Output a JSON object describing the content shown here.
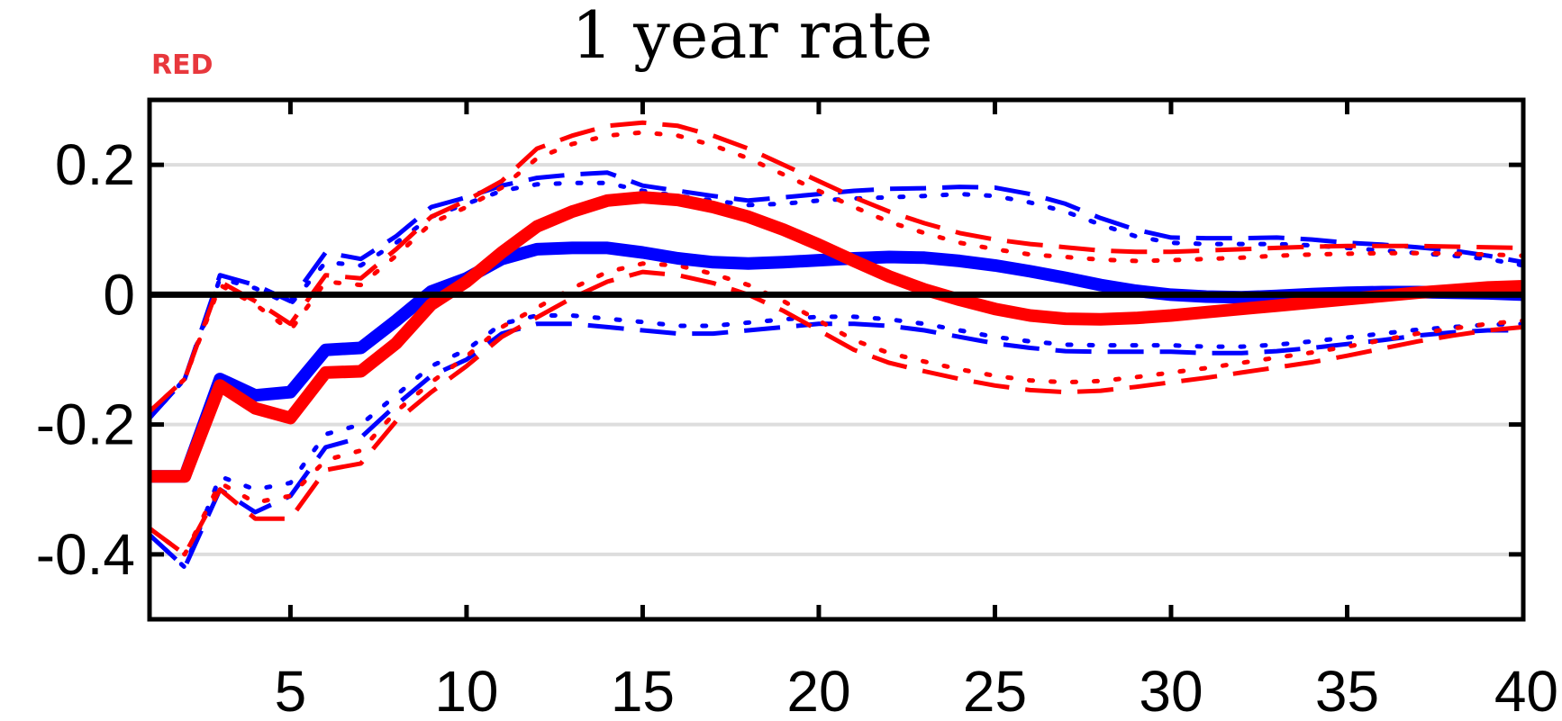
{
  "tag_label": "RED",
  "chart_data": {
    "type": "line",
    "title": "1 year rate",
    "xlabel": "",
    "ylabel": "",
    "xlim": [
      1,
      40
    ],
    "ylim": [
      -0.5,
      0.3
    ],
    "xticks": [
      5,
      10,
      15,
      20,
      25,
      30,
      35,
      40
    ],
    "xtick_labels": [
      "5",
      "10",
      "15",
      "20",
      "25",
      "30",
      "35",
      "40"
    ],
    "yticks": [
      0.2,
      0,
      -0.2,
      -0.4
    ],
    "ytick_labels": [
      "0.2",
      "0",
      "-0.2",
      "-0.4"
    ],
    "grid": "horizontal",
    "x": [
      1,
      2,
      3,
      4,
      5,
      6,
      7,
      8,
      9,
      10,
      11,
      12,
      13,
      14,
      15,
      16,
      17,
      18,
      19,
      20,
      21,
      22,
      23,
      24,
      25,
      26,
      27,
      28,
      29,
      30,
      31,
      32,
      33,
      34,
      35,
      36,
      37,
      38,
      39,
      40
    ],
    "series": [
      {
        "color": "#0000ff",
        "style": "solid",
        "width": 14,
        "values": [
          -0.28,
          -0.28,
          -0.13,
          -0.155,
          -0.15,
          -0.085,
          -0.082,
          -0.04,
          0.005,
          0.025,
          0.055,
          0.07,
          0.072,
          0.072,
          0.065,
          0.056,
          0.05,
          0.048,
          0.05,
          0.053,
          0.056,
          0.058,
          0.057,
          0.052,
          0.045,
          0.036,
          0.026,
          0.015,
          0.006,
          0.0,
          -0.003,
          -0.004,
          -0.002,
          0.001,
          0.003,
          0.004,
          0.004,
          0.003,
          0.002,
          0.0
        ]
      },
      {
        "color": "#ff0000",
        "style": "solid",
        "width": 14,
        "values": [
          -0.28,
          -0.28,
          -0.14,
          -0.175,
          -0.19,
          -0.12,
          -0.118,
          -0.075,
          -0.015,
          0.02,
          0.065,
          0.105,
          0.128,
          0.145,
          0.15,
          0.146,
          0.135,
          0.12,
          0.1,
          0.077,
          0.052,
          0.028,
          0.008,
          -0.008,
          -0.022,
          -0.032,
          -0.037,
          -0.038,
          -0.036,
          -0.032,
          -0.027,
          -0.022,
          -0.017,
          -0.012,
          -0.007,
          -0.002,
          0.003,
          0.007,
          0.011,
          0.013
        ]
      },
      {
        "color": "#0000ff",
        "style": "dash",
        "width": 5,
        "values": [
          -0.19,
          -0.13,
          0.03,
          0.015,
          -0.01,
          0.065,
          0.055,
          0.09,
          0.135,
          0.15,
          0.168,
          0.18,
          0.185,
          0.188,
          0.168,
          0.16,
          0.152,
          0.145,
          0.15,
          0.155,
          0.16,
          0.163,
          0.164,
          0.166,
          0.165,
          0.155,
          0.14,
          0.118,
          0.1,
          0.088,
          0.087,
          0.087,
          0.088,
          0.085,
          0.08,
          0.077,
          0.073,
          0.068,
          0.06,
          0.05
        ]
      },
      {
        "color": "#0000ff",
        "style": "dot",
        "width": 5,
        "values": [
          -0.19,
          -0.13,
          0.025,
          0.01,
          -0.015,
          0.05,
          0.045,
          0.08,
          0.12,
          0.14,
          0.16,
          0.17,
          0.172,
          0.172,
          0.16,
          0.152,
          0.145,
          0.138,
          0.14,
          0.145,
          0.148,
          0.15,
          0.152,
          0.155,
          0.152,
          0.142,
          0.128,
          0.108,
          0.09,
          0.08,
          0.078,
          0.078,
          0.078,
          0.076,
          0.072,
          0.068,
          0.064,
          0.06,
          0.055,
          0.045
        ]
      },
      {
        "color": "#0000ff",
        "style": "dash",
        "width": 5,
        "values": [
          -0.37,
          -0.42,
          -0.3,
          -0.335,
          -0.31,
          -0.235,
          -0.22,
          -0.17,
          -0.125,
          -0.1,
          -0.06,
          -0.045,
          -0.045,
          -0.05,
          -0.055,
          -0.06,
          -0.06,
          -0.055,
          -0.05,
          -0.045,
          -0.045,
          -0.048,
          -0.055,
          -0.065,
          -0.075,
          -0.082,
          -0.087,
          -0.088,
          -0.088,
          -0.088,
          -0.09,
          -0.09,
          -0.087,
          -0.082,
          -0.076,
          -0.07,
          -0.063,
          -0.058,
          -0.055,
          -0.055
        ]
      },
      {
        "color": "#0000ff",
        "style": "dot",
        "width": 5,
        "values": [
          -0.37,
          -0.42,
          -0.28,
          -0.3,
          -0.29,
          -0.215,
          -0.2,
          -0.155,
          -0.11,
          -0.085,
          -0.045,
          -0.032,
          -0.032,
          -0.037,
          -0.042,
          -0.048,
          -0.048,
          -0.043,
          -0.038,
          -0.034,
          -0.034,
          -0.038,
          -0.045,
          -0.055,
          -0.065,
          -0.072,
          -0.077,
          -0.078,
          -0.078,
          -0.078,
          -0.08,
          -0.08,
          -0.077,
          -0.072,
          -0.066,
          -0.06,
          -0.054,
          -0.05,
          -0.046,
          -0.045
        ]
      },
      {
        "color": "#ff0000",
        "style": "dash",
        "width": 5,
        "values": [
          -0.18,
          -0.13,
          0.02,
          -0.01,
          -0.045,
          0.03,
          0.025,
          0.07,
          0.12,
          0.145,
          0.175,
          0.225,
          0.245,
          0.26,
          0.265,
          0.26,
          0.245,
          0.225,
          0.2,
          0.175,
          0.15,
          0.128,
          0.11,
          0.095,
          0.085,
          0.078,
          0.073,
          0.068,
          0.066,
          0.066,
          0.068,
          0.07,
          0.072,
          0.074,
          0.075,
          0.075,
          0.075,
          0.074,
          0.073,
          0.072
        ]
      },
      {
        "color": "#ff0000",
        "style": "dot",
        "width": 5,
        "values": [
          -0.18,
          -0.13,
          0.015,
          -0.015,
          -0.055,
          0.02,
          0.015,
          0.06,
          0.11,
          0.135,
          0.165,
          0.21,
          0.232,
          0.245,
          0.25,
          0.245,
          0.23,
          0.21,
          0.185,
          0.16,
          0.135,
          0.112,
          0.095,
          0.08,
          0.07,
          0.062,
          0.058,
          0.054,
          0.052,
          0.053,
          0.055,
          0.057,
          0.06,
          0.062,
          0.063,
          0.064,
          0.064,
          0.063,
          0.062,
          0.06
        ]
      },
      {
        "color": "#ff0000",
        "style": "dash",
        "width": 5,
        "values": [
          -0.36,
          -0.4,
          -0.3,
          -0.345,
          -0.345,
          -0.27,
          -0.26,
          -0.195,
          -0.15,
          -0.11,
          -0.065,
          -0.035,
          -0.005,
          0.02,
          0.035,
          0.03,
          0.018,
          0.0,
          -0.025,
          -0.055,
          -0.085,
          -0.105,
          -0.118,
          -0.13,
          -0.14,
          -0.147,
          -0.15,
          -0.148,
          -0.142,
          -0.135,
          -0.128,
          -0.12,
          -0.112,
          -0.104,
          -0.094,
          -0.083,
          -0.072,
          -0.063,
          -0.055,
          -0.05
        ]
      },
      {
        "color": "#ff0000",
        "style": "dot",
        "width": 5,
        "values": [
          -0.36,
          -0.4,
          -0.29,
          -0.32,
          -0.31,
          -0.255,
          -0.24,
          -0.18,
          -0.135,
          -0.095,
          -0.05,
          -0.02,
          0.01,
          0.035,
          0.048,
          0.045,
          0.032,
          0.015,
          -0.01,
          -0.04,
          -0.07,
          -0.09,
          -0.103,
          -0.115,
          -0.125,
          -0.132,
          -0.135,
          -0.133,
          -0.127,
          -0.12,
          -0.113,
          -0.105,
          -0.097,
          -0.089,
          -0.08,
          -0.07,
          -0.06,
          -0.052,
          -0.045,
          -0.04
        ]
      }
    ]
  }
}
